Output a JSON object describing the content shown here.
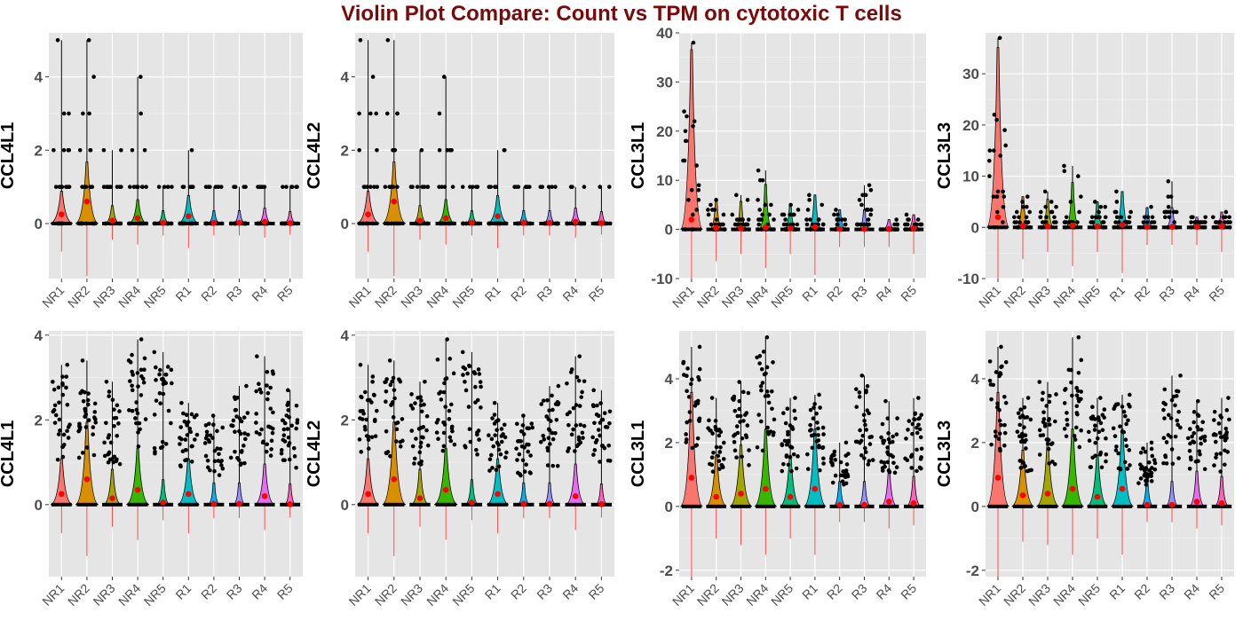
{
  "title": "Violin Plot Compare: Count vs TPM on cytotoxic T cells",
  "categories": [
    "NR1",
    "NR2",
    "NR3",
    "NR4",
    "NR5",
    "R1",
    "R2",
    "R3",
    "R4",
    "R5"
  ],
  "colors": [
    "#F8766D",
    "#D89000",
    "#A3A500",
    "#39B600",
    "#00BF7D",
    "#00BFC4",
    "#00B0F6",
    "#9590FF",
    "#E76BF3",
    "#FF62BC"
  ],
  "chart_data": [
    {
      "type": "violin",
      "ylabel": "CCL4L1",
      "ylim": [
        -1.5,
        5.2
      ],
      "yticks": [
        0,
        2,
        4
      ],
      "means": [
        0.25,
        0.6,
        0.08,
        0.15,
        0.02,
        0.2,
        0.02,
        0.02,
        0.05,
        0.01
      ],
      "maxes": [
        5,
        5,
        2,
        4,
        1,
        2,
        1,
        1,
        1,
        1
      ],
      "grid": true
    },
    {
      "type": "violin",
      "ylabel": "CCL4L2",
      "ylim": [
        -1.5,
        5.2
      ],
      "yticks": [
        0,
        2,
        4
      ],
      "means": [
        0.25,
        0.6,
        0.08,
        0.15,
        0.02,
        0.2,
        0.02,
        0.02,
        0.05,
        0.01
      ],
      "maxes": [
        5,
        5,
        2,
        4,
        1,
        2,
        1,
        1,
        1,
        1
      ],
      "grid": true
    },
    {
      "type": "violin",
      "ylabel": "CCL3L1",
      "ylim": [
        -10,
        40
      ],
      "yticks": [
        -10,
        0,
        10,
        20,
        30,
        40
      ],
      "means": [
        2,
        0.3,
        0.2,
        0.4,
        0.2,
        0.5,
        0.1,
        0.1,
        0.1,
        0.2
      ],
      "maxes": [
        38,
        6,
        7,
        12,
        5,
        7,
        4,
        9,
        2,
        3
      ],
      "grid": true
    },
    {
      "type": "violin",
      "ylabel": "CCL3L3",
      "ylim": [
        -10,
        38
      ],
      "yticks": [
        -10,
        0,
        10,
        20,
        30
      ],
      "means": [
        2,
        0.3,
        0.2,
        0.4,
        0.2,
        0.5,
        0.1,
        0.1,
        0.1,
        0.2
      ],
      "maxes": [
        37,
        6,
        7,
        12,
        5,
        7,
        4,
        9,
        2,
        3
      ],
      "grid": true
    },
    {
      "type": "violin",
      "ylabel": "CCL4L1",
      "ylim": [
        -1.7,
        4.1
      ],
      "yticks": [
        0,
        2,
        4
      ],
      "means": [
        0.25,
        0.6,
        0.15,
        0.35,
        0.05,
        0.25,
        0.02,
        0.02,
        0.2,
        0.01
      ],
      "maxes": [
        3.3,
        3.4,
        2.9,
        3.9,
        3.6,
        2.4,
        2.1,
        2.8,
        3.5,
        2.7
      ],
      "grid": true
    },
    {
      "type": "violin",
      "ylabel": "CCL4L2",
      "ylim": [
        -1.7,
        4.1
      ],
      "yticks": [
        0,
        2,
        4
      ],
      "means": [
        0.25,
        0.6,
        0.15,
        0.35,
        0.05,
        0.25,
        0.02,
        0.02,
        0.2,
        0.01
      ],
      "maxes": [
        3.3,
        3.4,
        2.9,
        3.9,
        3.6,
        2.4,
        2.1,
        2.8,
        3.5,
        2.7
      ],
      "grid": true
    },
    {
      "type": "violin",
      "ylabel": "CCL3L1",
      "ylim": [
        -2.2,
        5.5
      ],
      "yticks": [
        -2,
        0,
        2,
        4
      ],
      "means": [
        0.9,
        0.3,
        0.4,
        0.55,
        0.3,
        0.55,
        0.05,
        0.05,
        0.15,
        0.1
      ],
      "maxes": [
        5,
        3.4,
        3.9,
        5.3,
        3.4,
        3.5,
        2,
        4.1,
        3.3,
        3.4
      ],
      "grid": true
    },
    {
      "type": "violin",
      "ylabel": "CCL3L3",
      "ylim": [
        -2.2,
        5.5
      ],
      "yticks": [
        -2,
        0,
        2,
        4
      ],
      "means": [
        0.9,
        0.35,
        0.4,
        0.55,
        0.3,
        0.55,
        0.05,
        0.05,
        0.15,
        0.1
      ],
      "maxes": [
        5,
        3.4,
        3.9,
        5.3,
        3.4,
        3.5,
        2,
        4.1,
        3.3,
        3.4
      ],
      "grid": true
    }
  ]
}
